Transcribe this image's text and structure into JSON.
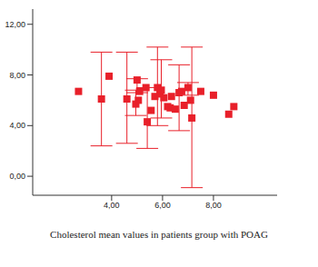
{
  "chart_data": {
    "type": "scatter",
    "title": "Cholesterol mean values in patients group with POAG",
    "x": [
      2.7,
      3.6,
      3.9,
      4.6,
      4.95,
      5.0,
      5.05,
      5.1,
      5.35,
      5.4,
      5.55,
      5.7,
      5.8,
      5.9,
      5.95,
      6.05,
      6.2,
      6.3,
      6.35,
      6.5,
      6.65,
      6.75,
      6.85,
      7.0,
      7.1,
      7.15,
      7.5,
      8.0,
      8.6,
      8.8
    ],
    "values": [
      6.7,
      6.1,
      7.9,
      6.1,
      5.7,
      7.6,
      6.0,
      6.7,
      7.0,
      4.3,
      5.2,
      6.3,
      7.0,
      6.5,
      6.8,
      6.2,
      5.5,
      5.4,
      6.3,
      5.3,
      6.6,
      6.7,
      5.6,
      7.0,
      6.0,
      4.6,
      6.7,
      6.4,
      4.9,
      5.5
    ],
    "error_low": [
      null,
      2.4,
      null,
      2.6,
      4.8,
      6.6,
      null,
      null,
      null,
      2.2,
      null,
      null,
      4.0,
      null,
      4.6,
      null,
      null,
      null,
      null,
      null,
      3.6,
      null,
      null,
      6.4,
      null,
      -0.9,
      null,
      null,
      null,
      null
    ],
    "error_high": [
      null,
      9.8,
      null,
      9.8,
      6.8,
      7.7,
      null,
      null,
      null,
      7.0,
      null,
      null,
      10.2,
      null,
      9.2,
      null,
      null,
      null,
      null,
      null,
      8.8,
      null,
      null,
      7.4,
      null,
      10.2,
      null,
      null,
      null,
      null
    ],
    "color": "#e8202a",
    "marker": "square",
    "xlim": [
      0.9,
      10.5
    ],
    "ylim": [
      -1.5,
      13.2
    ],
    "xticks": [
      {
        "value": 4,
        "label": "4,00"
      },
      {
        "value": 6,
        "label": "6,00"
      },
      {
        "value": 8,
        "label": "8,00"
      }
    ],
    "yticks": [
      {
        "value": 0,
        "label": "0,00"
      },
      {
        "value": 4,
        "label": "4,00"
      },
      {
        "value": 8,
        "label": "8,00"
      },
      {
        "value": 12,
        "label": "12,00"
      }
    ]
  }
}
